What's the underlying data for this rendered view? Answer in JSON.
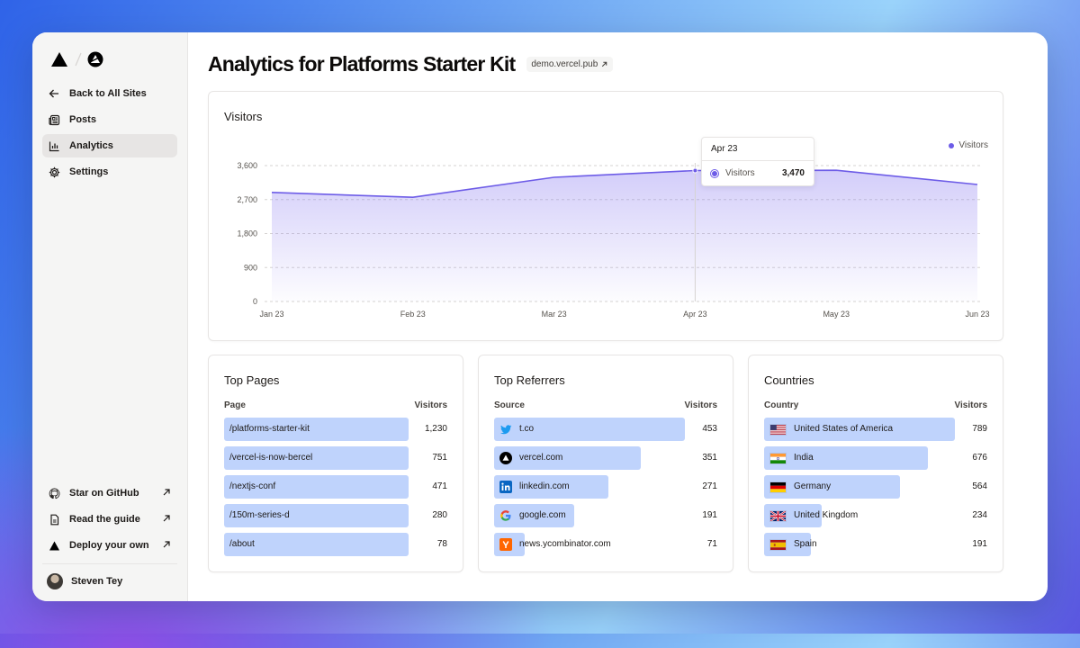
{
  "sidebar": {
    "nav": [
      {
        "label": "Back to All Sites",
        "icon": "arrow-left-icon"
      },
      {
        "label": "Posts",
        "icon": "newspaper-icon"
      },
      {
        "label": "Analytics",
        "icon": "bar-chart-icon",
        "active": true
      },
      {
        "label": "Settings",
        "icon": "gear-icon"
      }
    ],
    "bottom": [
      {
        "label": "Star on GitHub",
        "icon": "github-icon"
      },
      {
        "label": "Read the guide",
        "icon": "file-icon"
      },
      {
        "label": "Deploy your own",
        "icon": "vercel-triangle-icon"
      }
    ],
    "user": {
      "name": "Steven Tey"
    }
  },
  "header": {
    "title": "Analytics for Platforms Starter Kit",
    "domain": "demo.vercel.pub"
  },
  "visitors_card": {
    "title": "Visitors",
    "legend": "Visitors",
    "tooltip": {
      "month": "Apr 23",
      "label": "Visitors",
      "value": "3,470"
    }
  },
  "chart_data": {
    "type": "area",
    "title": "Visitors",
    "categories": [
      "Jan 23",
      "Feb 23",
      "Mar 23",
      "Apr 23",
      "May 23",
      "Jun 23"
    ],
    "series": [
      {
        "name": "Visitors",
        "values": [
          2890,
          2760,
          3290,
          3470,
          3475,
          3100
        ]
      }
    ],
    "yticks": [
      "0",
      "900",
      "1,800",
      "2,700",
      "3,600"
    ],
    "ylim": [
      0,
      3600
    ],
    "grid": true,
    "legend": "top-right",
    "color": "#6d5ce7"
  },
  "top_pages": {
    "title": "Top Pages",
    "col1": "Page",
    "col2": "Visitors",
    "rows": [
      {
        "label": "/platforms-starter-kit",
        "value": "1,230",
        "fraction": 1.0
      },
      {
        "label": "/vercel-is-now-bercel",
        "value": "751",
        "fraction": 1.0
      },
      {
        "label": "/nextjs-conf",
        "value": "471",
        "fraction": 1.0
      },
      {
        "label": "/150m-series-d",
        "value": "280",
        "fraction": 1.0
      },
      {
        "label": "/about",
        "value": "78",
        "fraction": 1.0
      }
    ]
  },
  "top_referrers": {
    "title": "Top Referrers",
    "col1": "Source",
    "col2": "Visitors",
    "rows": [
      {
        "label": "t.co",
        "value": "453",
        "fraction": 1.0,
        "icon": "twitter-icon"
      },
      {
        "label": "vercel.com",
        "value": "351",
        "fraction": 0.77,
        "icon": "vercel-icon"
      },
      {
        "label": "linkedin.com",
        "value": "271",
        "fraction": 0.6,
        "icon": "linkedin-icon"
      },
      {
        "label": "google.com",
        "value": "191",
        "fraction": 0.42,
        "icon": "google-icon"
      },
      {
        "label": "news.ycombinator.com",
        "value": "71",
        "fraction": 0.16,
        "icon": "ycombinator-icon"
      }
    ]
  },
  "countries": {
    "title": "Countries",
    "col1": "Country",
    "col2": "Visitors",
    "rows": [
      {
        "label": "United States of America",
        "value": "789",
        "fraction": 1.0,
        "icon": "us-flag-icon"
      },
      {
        "label": "India",
        "value": "676",
        "fraction": 0.86,
        "icon": "india-flag-icon"
      },
      {
        "label": "Germany",
        "value": "564",
        "fraction": 0.71,
        "icon": "germany-flag-icon"
      },
      {
        "label": "United Kingdom",
        "value": "234",
        "fraction": 0.3,
        "icon": "uk-flag-icon"
      },
      {
        "label": "Spain",
        "value": "191",
        "fraction": 0.24,
        "icon": "spain-flag-icon"
      }
    ]
  },
  "colors": {
    "accent": "#6d5ce7",
    "bar_fill": "#bfd3fc"
  }
}
